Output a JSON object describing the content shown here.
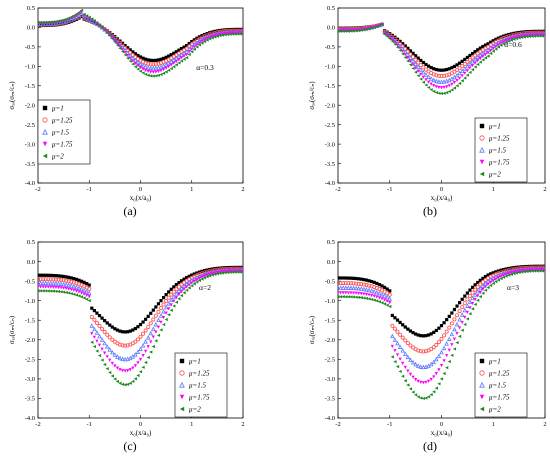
{
  "figure": {
    "panel_labels": [
      "(a)",
      "(b)",
      "(c)",
      "(d)"
    ],
    "y_axis_label": "σₓₔ(σₘ/cₙ)",
    "x_axis_label": "x₀(x/a₀)"
  },
  "legend_entries": [
    "μ=1",
    "μ=1.25",
    "μ=1.5",
    "μ=1.75",
    "μ=2"
  ],
  "series_styles": [
    {
      "name": "μ=1",
      "color": "#000000",
      "marker": "square-filled"
    },
    {
      "name": "μ=1.25",
      "color": "#ff5050",
      "marker": "circle-open"
    },
    {
      "name": "μ=1.5",
      "color": "#5a78ff",
      "marker": "triangle-up-open"
    },
    {
      "name": "μ=1.75",
      "color": "#ff00ff",
      "marker": "triangle-down-filled"
    },
    {
      "name": "μ=2",
      "color": "#1a8a1a",
      "marker": "triangle-left-filled"
    }
  ],
  "chart_data": [
    {
      "panel": "(a)",
      "type": "scatter",
      "annotation": "α=0.3",
      "legend_position": "middle-left",
      "xlabel": "x₀(x/a₀)",
      "ylabel": "σₓₔ(σₘ/cₙ)",
      "xlim": [
        -2,
        2
      ],
      "ylim": [
        -4.0,
        0.5
      ],
      "xticks": [
        -2,
        -1,
        0,
        1,
        2
      ],
      "yticks": [
        "-4.0",
        "-3.5",
        "-3.0",
        "-2.5",
        "-2.0",
        "-1.5",
        "-1.0",
        "-0.5",
        "0.0",
        "0.5"
      ],
      "curve": {
        "x0": -1.15,
        "peak": [
          0.28,
          0.32,
          0.36,
          0.4,
          0.44
        ],
        "left_base": [
          0.05,
          0.07,
          0.09,
          0.11,
          0.13
        ],
        "min": [
          -0.85,
          -0.95,
          -1.05,
          -1.15,
          -1.25
        ],
        "min_x": 0.25,
        "right_end": [
          -0.05,
          -0.08,
          -0.11,
          -0.14,
          -0.17
        ]
      }
    },
    {
      "panel": "(b)",
      "type": "scatter",
      "annotation": "α=0.6",
      "legend_position": "bottom-right",
      "xlabel": "x₀(x/a₀)",
      "ylabel": "σₓₔ(σₘ/cₙ)",
      "xlim": [
        -2,
        2
      ],
      "ylim": [
        -4.0,
        0.5
      ],
      "xticks": [
        -2,
        -1,
        0,
        1,
        2
      ],
      "yticks": [
        "-4.0",
        "-3.5",
        "-3.0",
        "-2.5",
        "-2.0",
        "-1.5",
        "-1.0",
        "-0.5",
        "0.0",
        "0.5"
      ],
      "curve": {
        "x0": -1.15,
        "peak": [
          0.08,
          0.08,
          0.08,
          0.08,
          0.08
        ],
        "left_base": [
          -0.02,
          -0.04,
          -0.06,
          -0.08,
          -0.1
        ],
        "min": [
          -1.1,
          -1.25,
          -1.4,
          -1.55,
          -1.7
        ],
        "min_x": 0.0,
        "right_end": [
          -0.1,
          -0.13,
          -0.16,
          -0.19,
          -0.22
        ]
      }
    },
    {
      "panel": "(c)",
      "type": "scatter",
      "annotation": "α=2",
      "legend_position": "bottom-right",
      "xlabel": "x₀(x/a₀)",
      "ylabel": "σₓₔ(σₘ/cₙ)",
      "xlim": [
        -2,
        2
      ],
      "ylim": [
        -4.0,
        0.5
      ],
      "xticks": [
        -2,
        -1,
        0,
        1,
        2
      ],
      "yticks": [
        "-4.0",
        "-3.5",
        "-3.0",
        "-2.5",
        "-2.0",
        "-1.5",
        "-1.0",
        "-0.5",
        "0.0",
        "0.5"
      ],
      "curve": {
        "x0": -1.0,
        "peak": [
          -0.6,
          -0.7,
          -0.8,
          -0.9,
          -1.0
        ],
        "left_base": [
          -0.35,
          -0.45,
          -0.55,
          -0.65,
          -0.75
        ],
        "min": [
          -1.8,
          -2.15,
          -2.5,
          -2.8,
          -3.15
        ],
        "min_x": -0.3,
        "right_end": [
          -0.15,
          -0.18,
          -0.21,
          -0.24,
          -0.27
        ]
      }
    },
    {
      "panel": "(d)",
      "type": "scatter",
      "annotation": "α=3",
      "legend_position": "bottom-right",
      "xlabel": "x₀(x/a₀)",
      "ylabel": "σₓₔ(σₘ/cₙ)",
      "xlim": [
        -2,
        2
      ],
      "ylim": [
        -4.0,
        0.5
      ],
      "xticks": [
        -2,
        -1,
        0,
        1,
        2
      ],
      "yticks": [
        "-4.0",
        "-3.5",
        "-3.0",
        "-2.5",
        "-2.0",
        "-1.5",
        "-1.0",
        "-0.5",
        "0.0",
        "0.5"
      ],
      "curve": {
        "x0": -1.0,
        "peak": [
          -0.75,
          -0.85,
          -0.95,
          -1.05,
          -1.15
        ],
        "left_base": [
          -0.42,
          -0.55,
          -0.67,
          -0.8,
          -0.9
        ],
        "min": [
          -1.9,
          -2.3,
          -2.7,
          -3.1,
          -3.5
        ],
        "min_x": -0.35,
        "right_end": [
          -0.12,
          -0.15,
          -0.18,
          -0.21,
          -0.24
        ]
      }
    }
  ]
}
